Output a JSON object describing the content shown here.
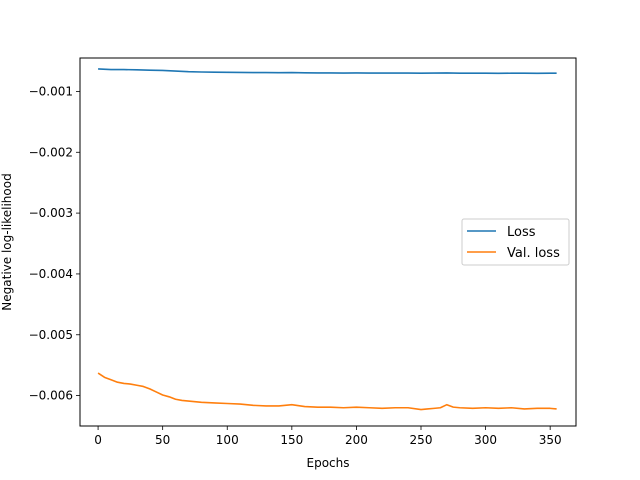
{
  "chart_data": {
    "type": "line",
    "xlabel": "Epochs",
    "ylabel": "Negative log-likelihood",
    "xlim": [
      -14,
      370
    ],
    "ylim": [
      -0.0065,
      -0.00045
    ],
    "xticks": [
      0,
      50,
      100,
      150,
      200,
      250,
      300,
      350
    ],
    "yticks": [
      -0.006,
      -0.005,
      -0.004,
      -0.003,
      -0.002,
      -0.001
    ],
    "ytick_labels": [
      "−0.006",
      "−0.005",
      "−0.004",
      "−0.003",
      "−0.002",
      "−0.001"
    ],
    "grid": false,
    "legend_position": "center-right",
    "series": [
      {
        "name": "Loss",
        "color": "#1f77b4",
        "x": [
          0,
          10,
          20,
          30,
          40,
          50,
          60,
          70,
          80,
          90,
          100,
          110,
          120,
          130,
          140,
          150,
          160,
          170,
          180,
          190,
          200,
          210,
          220,
          230,
          240,
          250,
          260,
          270,
          280,
          290,
          300,
          310,
          320,
          330,
          340,
          350,
          355
        ],
        "y": [
          -0.00063,
          -0.00064,
          -0.00064,
          -0.000645,
          -0.00065,
          -0.000655,
          -0.000665,
          -0.000675,
          -0.00068,
          -0.000683,
          -0.000685,
          -0.000688,
          -0.00069,
          -0.00069,
          -0.000692,
          -0.00069,
          -0.000693,
          -0.000695,
          -0.000695,
          -0.000697,
          -0.000695,
          -0.000697,
          -0.000698,
          -0.000697,
          -0.000698,
          -0.0007,
          -0.000698,
          -0.000695,
          -0.0007,
          -0.0007,
          -0.0007,
          -0.000702,
          -0.0007,
          -0.0007,
          -0.000702,
          -0.0007,
          -0.0007
        ]
      },
      {
        "name": "Val. loss",
        "color": "#ff7f0e",
        "x": [
          0,
          5,
          10,
          15,
          20,
          25,
          30,
          35,
          40,
          45,
          50,
          55,
          60,
          65,
          70,
          75,
          80,
          90,
          100,
          110,
          120,
          130,
          140,
          150,
          160,
          170,
          180,
          190,
          200,
          210,
          220,
          230,
          240,
          250,
          255,
          260,
          265,
          270,
          275,
          280,
          290,
          300,
          310,
          320,
          330,
          340,
          350,
          355
        ],
        "y": [
          -0.00563,
          -0.0057,
          -0.00574,
          -0.00578,
          -0.0058,
          -0.00581,
          -0.00583,
          -0.00585,
          -0.00589,
          -0.00594,
          -0.00599,
          -0.00602,
          -0.00606,
          -0.00608,
          -0.00609,
          -0.0061,
          -0.00611,
          -0.00612,
          -0.00613,
          -0.00614,
          -0.00616,
          -0.00617,
          -0.00617,
          -0.00615,
          -0.00618,
          -0.00619,
          -0.00619,
          -0.0062,
          -0.00619,
          -0.0062,
          -0.00621,
          -0.0062,
          -0.0062,
          -0.00623,
          -0.00622,
          -0.00621,
          -0.0062,
          -0.00615,
          -0.00619,
          -0.0062,
          -0.00621,
          -0.0062,
          -0.00621,
          -0.0062,
          -0.00622,
          -0.00621,
          -0.00621,
          -0.00622
        ]
      }
    ]
  }
}
